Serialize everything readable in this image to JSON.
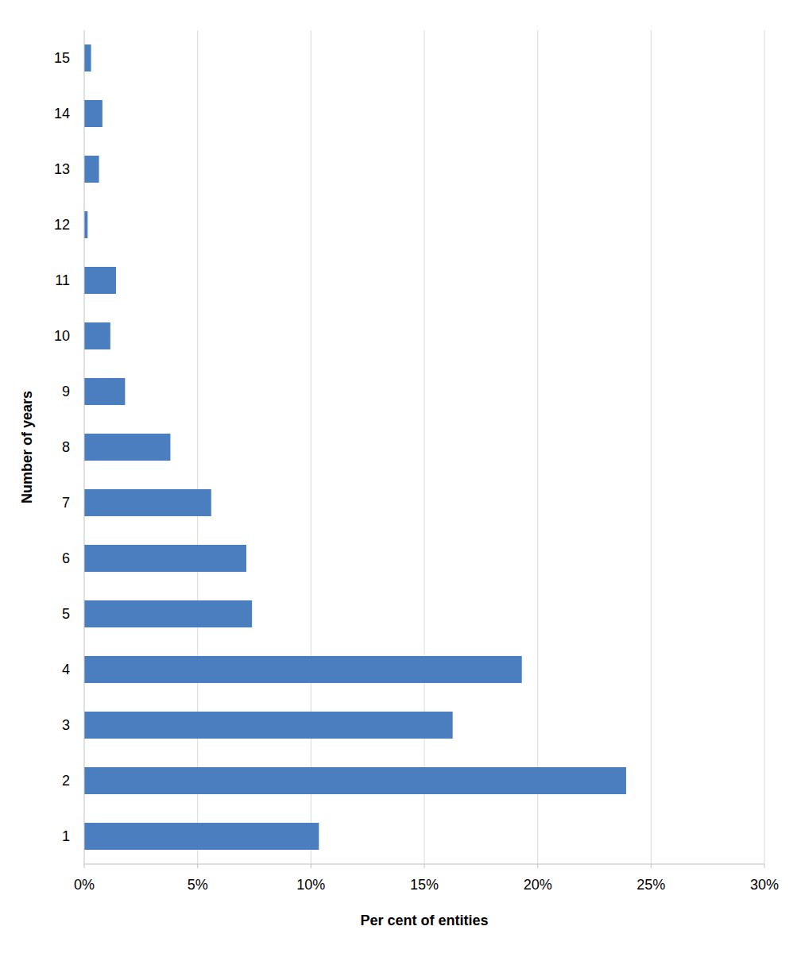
{
  "chart_data": {
    "type": "bar",
    "orientation": "horizontal",
    "xlabel": "Per cent of entities",
    "ylabel": "Number of years",
    "categories": [
      "1",
      "2",
      "3",
      "4",
      "5",
      "6",
      "7",
      "8",
      "9",
      "10",
      "11",
      "12",
      "13",
      "14",
      "15"
    ],
    "values": [
      10.35,
      23.9,
      16.25,
      19.3,
      7.4,
      7.15,
      5.6,
      3.8,
      1.8,
      1.15,
      1.4,
      0.15,
      0.65,
      0.8,
      0.3
    ],
    "color": "#4a7ebf",
    "xlim": [
      0,
      30
    ],
    "xticks": [
      {
        "value": 0,
        "label": "0%"
      },
      {
        "value": 5,
        "label": "5%"
      },
      {
        "value": 10,
        "label": "10%"
      },
      {
        "value": 15,
        "label": "15%"
      },
      {
        "value": 20,
        "label": "20%"
      },
      {
        "value": 25,
        "label": "25%"
      },
      {
        "value": 30,
        "label": "30%"
      }
    ],
    "grid": true
  }
}
